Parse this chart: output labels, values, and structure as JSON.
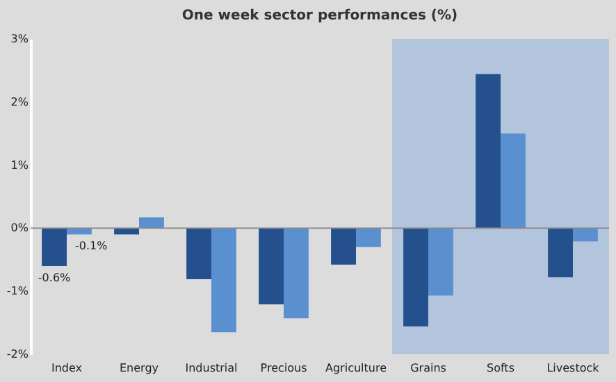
{
  "chart_data": {
    "type": "bar",
    "title": "One week sector performances (%)",
    "categories": [
      "Index",
      "Energy",
      "Industrial",
      "Precious",
      "Agriculture",
      "Grains",
      "Softs",
      "Livestock"
    ],
    "series": [
      {
        "color": "#24508e",
        "values": [
          -0.6,
          -0.1,
          -0.81,
          -1.21,
          -0.58,
          -1.56,
          2.44,
          -0.78
        ],
        "value_labels": [
          "-0.6%",
          null,
          null,
          null,
          null,
          null,
          null,
          null
        ]
      },
      {
        "color": "#5a8fd0",
        "values": [
          -0.1,
          0.17,
          -1.65,
          -1.43,
          -0.3,
          -1.07,
          1.5,
          -0.21
        ],
        "value_labels": [
          "-0.1%",
          null,
          null,
          null,
          null,
          null,
          null,
          null
        ]
      }
    ],
    "ylim": [
      -2,
      3
    ],
    "yticks": [
      {
        "value": -2,
        "label": "-2%"
      },
      {
        "value": -1,
        "label": "-1%"
      },
      {
        "value": 0,
        "label": "0%"
      },
      {
        "value": 1,
        "label": "1%"
      },
      {
        "value": 2,
        "label": "2%"
      },
      {
        "value": 3,
        "label": "3%"
      }
    ],
    "bands": [
      {
        "axis": "x",
        "from": "Grains",
        "to": "Livestock",
        "color": "#b3c5dc"
      }
    ],
    "ref_lines": [
      {
        "axis": "y",
        "value": 0,
        "color": "#8a8a8a"
      }
    ]
  }
}
